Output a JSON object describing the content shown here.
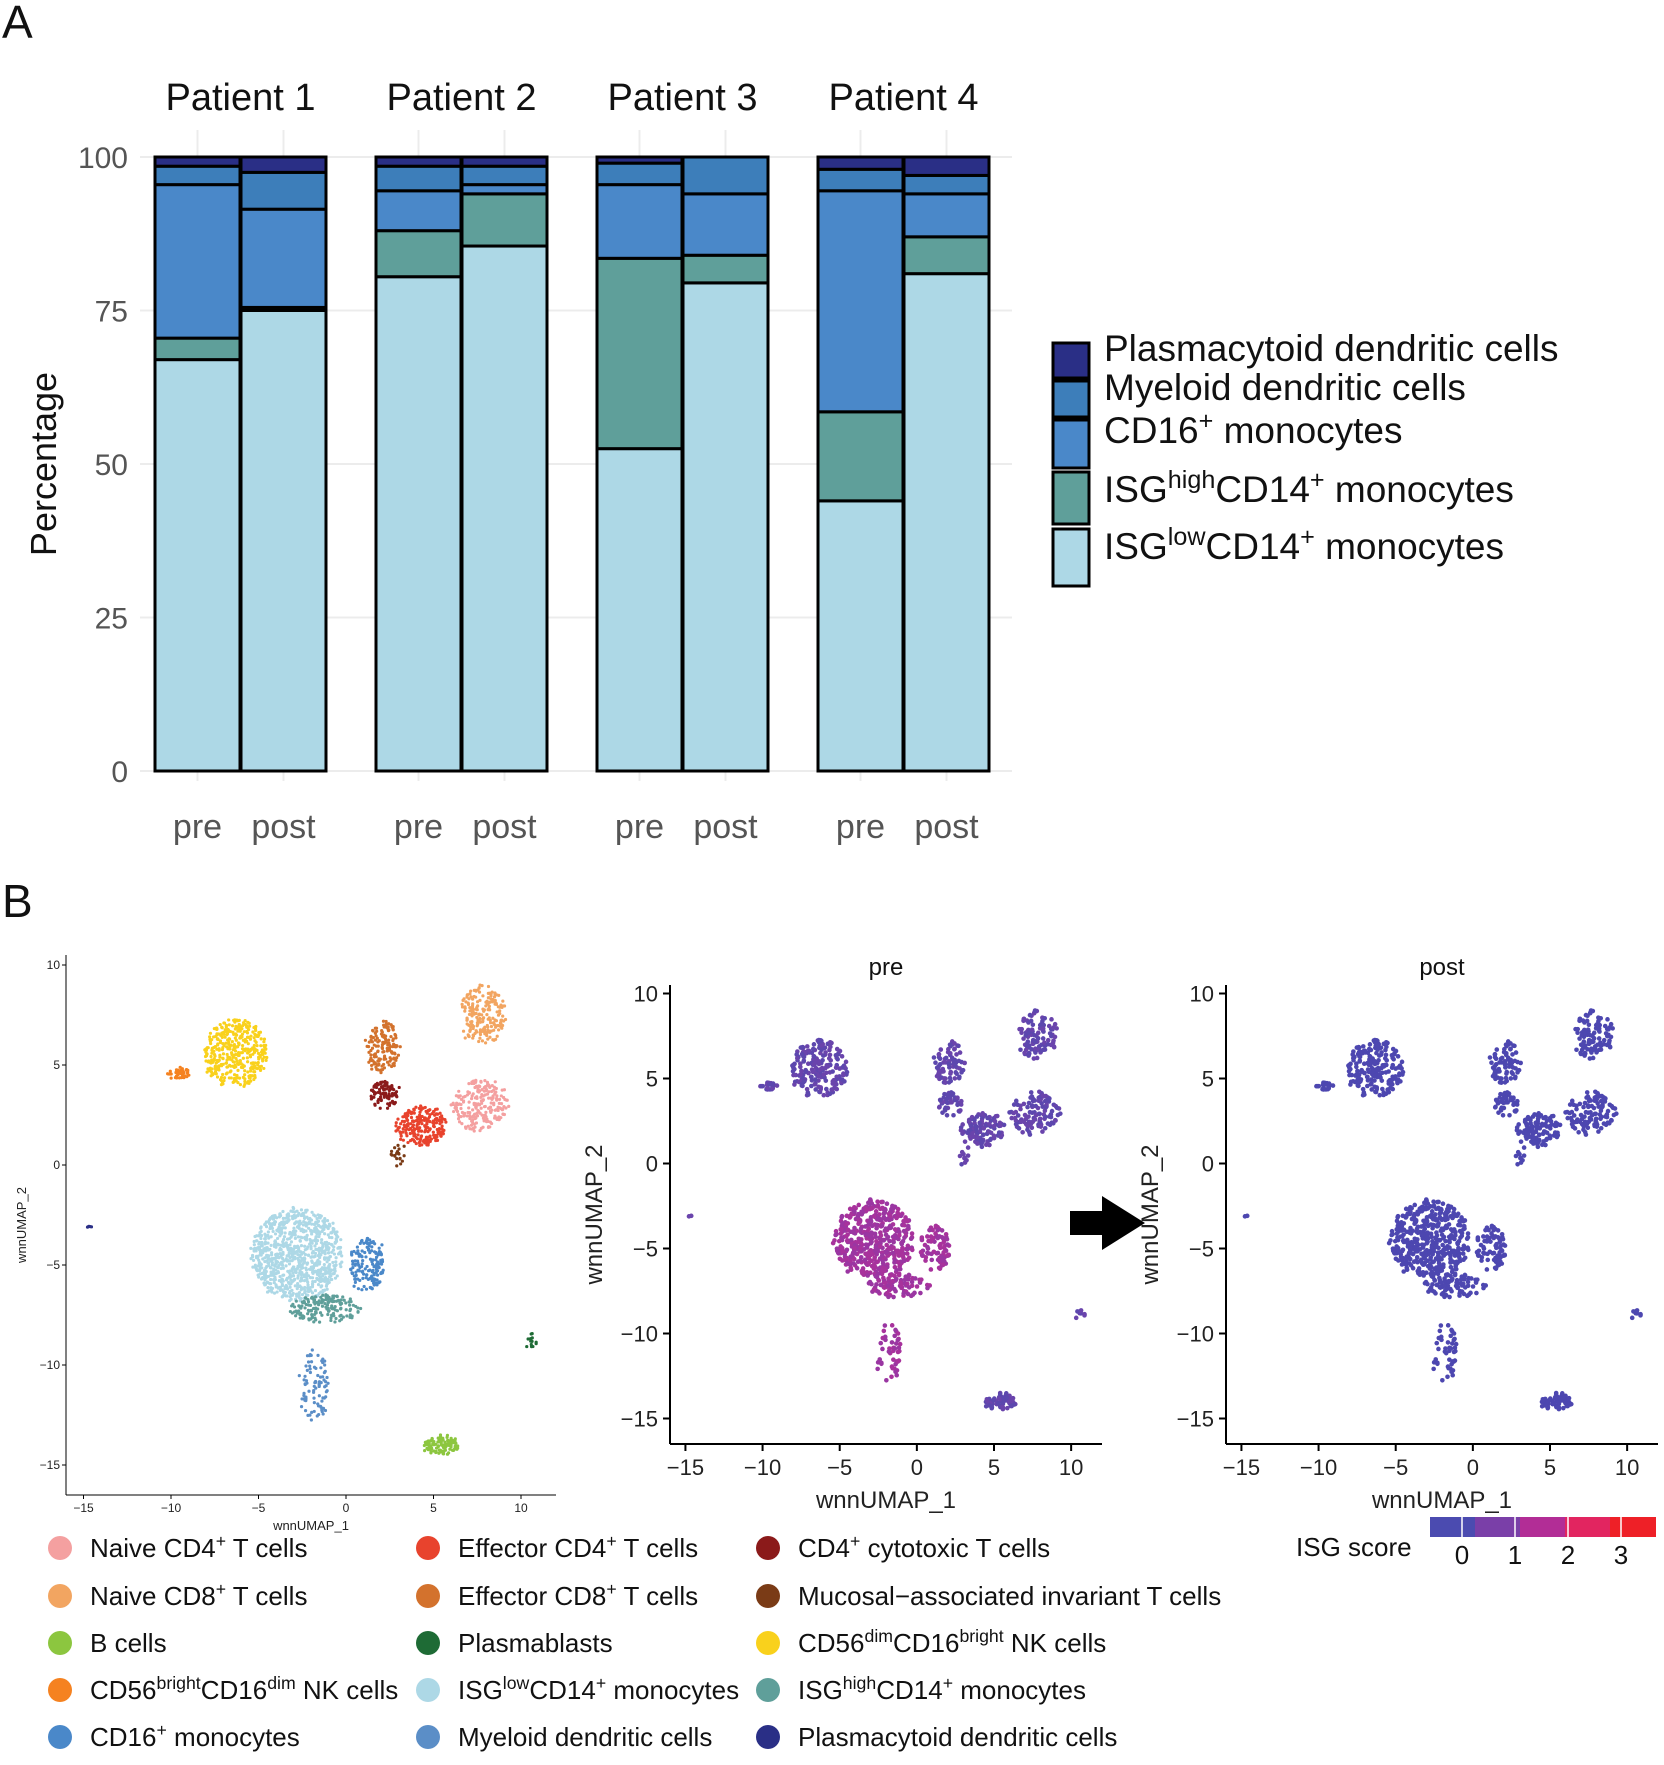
{
  "panels": {
    "a_label": "A",
    "b_label": "B"
  },
  "chart_data": [
    {
      "type": "bar",
      "stacked": true,
      "ylabel": "Percentage",
      "ylim": [
        0,
        100
      ],
      "yticks": [
        "0",
        "25",
        "50",
        "75",
        "100"
      ],
      "grid": true,
      "legend_position": "right",
      "facets": [
        "Patient 1",
        "Patient 2",
        "Patient 3",
        "Patient 4"
      ],
      "categories": [
        "pre",
        "post"
      ],
      "series": [
        {
          "name": "ISGlowCD14+ monocytes",
          "color": "#add8e6",
          "values": [
            [
              67,
              75
            ],
            [
              80.5,
              85.5
            ],
            [
              52.5,
              79.5
            ],
            [
              44,
              81
            ]
          ]
        },
        {
          "name": "ISGhighCD14+ monocytes",
          "color": "#5f9f9a",
          "values": [
            [
              3.5,
              0.5
            ],
            [
              7.5,
              8.5
            ],
            [
              31,
              4.5
            ],
            [
              14.5,
              6
            ]
          ]
        },
        {
          "name": "CD16+ monocytes",
          "color": "#4a88c9",
          "values": [
            [
              25,
              16
            ],
            [
              6.5,
              1.5
            ],
            [
              12,
              10
            ],
            [
              36,
              7
            ]
          ]
        },
        {
          "name": "Myeloid dendritic cells",
          "color": "#3d7eba",
          "values": [
            [
              3,
              6
            ],
            [
              4,
              3
            ],
            [
              3.5,
              6
            ],
            [
              3.5,
              3
            ]
          ]
        },
        {
          "name": "Plasmacytoid dendritic cells",
          "color": "#2a2f86",
          "values": [
            [
              1.5,
              2.5
            ],
            [
              1.5,
              1.5
            ],
            [
              1,
              0
            ],
            [
              2,
              3
            ]
          ]
        }
      ],
      "legend": [
        {
          "main": "Plasmacytoid dendritic cells",
          "color": "#2a2f86"
        },
        {
          "main": "Myeloid dendritic cells",
          "color": "#3d7eba"
        },
        {
          "pre": "CD16",
          "sup1": "+",
          "post": " monocytes",
          "color": "#4a88c9"
        },
        {
          "pre": "ISG",
          "sup1": "high",
          "mid": "CD14",
          "sup2": "+",
          "post": " monocytes",
          "color": "#5f9f9a"
        },
        {
          "pre": "ISG",
          "sup1": "low",
          "mid": "CD14",
          "sup2": "+",
          "post": " monocytes",
          "color": "#add8e6"
        }
      ]
    },
    {
      "type": "scatter",
      "xlabel": "wnnUMAP_1",
      "ylabel": "wnnUMAP_2",
      "xlim": [
        -16,
        12
      ],
      "ylim": [
        -16.5,
        10.5
      ],
      "xticks": [
        "-15",
        "-10",
        "-5",
        "0",
        "5",
        "10"
      ],
      "yticks": [
        "10",
        "5",
        "0",
        "-5",
        "-10",
        "-15"
      ],
      "clusters": [
        {
          "name": "Naive CD4+ T cells",
          "color": "#f4a0a0",
          "cx": 7.7,
          "cy": 3.0,
          "rx": 1.6,
          "ry": 1.3,
          "n": 220
        },
        {
          "name": "Naive CD8+ T cells",
          "color": "#f2a561",
          "cx": 7.8,
          "cy": 7.5,
          "rx": 1.3,
          "ry": 1.5,
          "n": 200
        },
        {
          "name": "B cells",
          "color": "#8cc63f",
          "cx": 5.5,
          "cy": -14.0,
          "rx": 1.0,
          "ry": 0.45,
          "n": 110
        },
        {
          "name": "CD56brightCD16dim NK cells",
          "color": "#f58220",
          "cx": -9.5,
          "cy": 4.6,
          "rx": 0.6,
          "ry": 0.3,
          "n": 40
        },
        {
          "name": "CD16+ monocytes",
          "color": "#4a88c9",
          "cx": 1.2,
          "cy": -5.0,
          "rx": 1.0,
          "ry": 1.3,
          "n": 160
        },
        {
          "name": "Effector CD4+ T cells",
          "color": "#e8432d",
          "cx": 4.3,
          "cy": 1.9,
          "rx": 1.4,
          "ry": 1.0,
          "n": 220
        },
        {
          "name": "Effector CD8+ T cells",
          "color": "#d3722d",
          "cx": 2.1,
          "cy": 5.9,
          "rx": 1.0,
          "ry": 1.3,
          "n": 150
        },
        {
          "name": "Plasmablasts",
          "color": "#1e6b35",
          "cx": 10.6,
          "cy": -8.8,
          "rx": 0.25,
          "ry": 0.35,
          "n": 15
        },
        {
          "name": "ISGlowCD14+ monocytes",
          "color": "#add8e6",
          "cx": -2.8,
          "cy": -4.5,
          "rx": 2.6,
          "ry": 2.3,
          "n": 900
        },
        {
          "name": "Myeloid dendritic cells",
          "color": "#5b8ec7",
          "cx": -1.8,
          "cy": -11.0,
          "rx": 0.8,
          "ry": 1.8,
          "n": 90
        },
        {
          "name": "CD4+ cytotoxic T cells",
          "color": "#8b1a1a",
          "cx": 2.2,
          "cy": 3.5,
          "rx": 0.8,
          "ry": 0.7,
          "n": 90
        },
        {
          "name": "Mucosal-associated invariant T cells",
          "color": "#7a3b16",
          "cx": 3.0,
          "cy": 0.5,
          "rx": 0.4,
          "ry": 0.5,
          "n": 20
        },
        {
          "name": "CD56dimCD16brightNK cells",
          "color": "#f9d11c",
          "cx": -6.3,
          "cy": 5.6,
          "rx": 1.8,
          "ry": 1.7,
          "n": 400
        },
        {
          "name": "ISGhighCD14+ monocytes",
          "color": "#5f9f9a",
          "cx": -1.2,
          "cy": -7.2,
          "rx": 2.0,
          "ry": 0.7,
          "n": 160
        },
        {
          "name": "Plasmacytoid dendritic cells",
          "color": "#2a2f86",
          "cx": -14.6,
          "cy": -3.1,
          "rx": 0.15,
          "ry": 0.15,
          "n": 5
        }
      ]
    },
    {
      "type": "scatter",
      "title": "pre",
      "xlabel": "wnnUMAP_1",
      "ylabel": "wnnUMAP_2",
      "xticks": [
        "-15",
        "-10",
        "-5",
        "0",
        "5",
        "10"
      ],
      "yticks": [
        "10",
        "5",
        "0",
        "-5",
        "-10",
        "-15"
      ],
      "xlim": [
        -16,
        12
      ],
      "ylim": [
        -16.5,
        10.5
      ],
      "color_variable": "ISG score"
    },
    {
      "type": "scatter",
      "title": "post",
      "xlabel": "wnnUMAP_1",
      "ylabel": "wnnUMAP_2",
      "xticks": [
        "-15",
        "-10",
        "-5",
        "0",
        "5",
        "10"
      ],
      "yticks": [
        "10",
        "5",
        "0",
        "-5",
        "-10",
        "-15"
      ],
      "xlim": [
        -16,
        12
      ],
      "ylim": [
        -16.5,
        10.5
      ],
      "color_variable": "ISG score"
    }
  ],
  "isg_score_legend": {
    "title": "ISG score",
    "ticks": [
      "0",
      "1",
      "2",
      "3"
    ],
    "colors": [
      "#4b4bb0",
      "#7a3fa8",
      "#b22d96",
      "#e22560",
      "#ee2027"
    ]
  },
  "cluster_legend": [
    {
      "color": "#f4a0a0",
      "pre": "Naive CD4",
      "sup": "+",
      "post": " T cells"
    },
    {
      "color": "#e8432d",
      "pre": "Effector CD4",
      "sup": "+",
      "post": " T cells"
    },
    {
      "color": "#8b1a1a",
      "pre": "CD4",
      "sup": "+",
      "post": " cytotoxic T cells"
    },
    {
      "color": "#f2a561",
      "pre": "Naive CD8",
      "sup": "+",
      "post": " T cells"
    },
    {
      "color": "#d3722d",
      "pre": "Effector CD8",
      "sup": "+",
      "post": " T cells"
    },
    {
      "color": "#7a3b16",
      "pre": "Mucosal−associated invariant T cells"
    },
    {
      "color": "#8cc63f",
      "pre": "B cells"
    },
    {
      "color": "#1e6b35",
      "pre": "Plasmablasts"
    },
    {
      "color": "#f9d11c",
      "pre": "CD56",
      "sup": "dim",
      "post": "CD16",
      "sup2": "bright",
      "post2": " NK cells"
    },
    {
      "color": "#f58220",
      "pre": "CD56",
      "sup": "bright",
      "post": "CD16",
      "sup2": "dim",
      "post2": " NK cells"
    },
    {
      "color": "#add8e6",
      "pre": "ISG",
      "sup": "low",
      "post": "CD14",
      "sup2": "+",
      "post2": " monocytes"
    },
    {
      "color": "#5f9f9a",
      "pre": "ISG",
      "sup": "high",
      "post": "CD14",
      "sup2": "+",
      "post2": " monocytes"
    },
    {
      "color": "#4a88c9",
      "pre": "CD16",
      "sup": "+",
      "post": " monocytes"
    },
    {
      "color": "#5b8ec7",
      "pre": "Myeloid dendritic cells"
    },
    {
      "color": "#2a2f86",
      "pre": "Plasmacytoid dendritic cells"
    }
  ]
}
